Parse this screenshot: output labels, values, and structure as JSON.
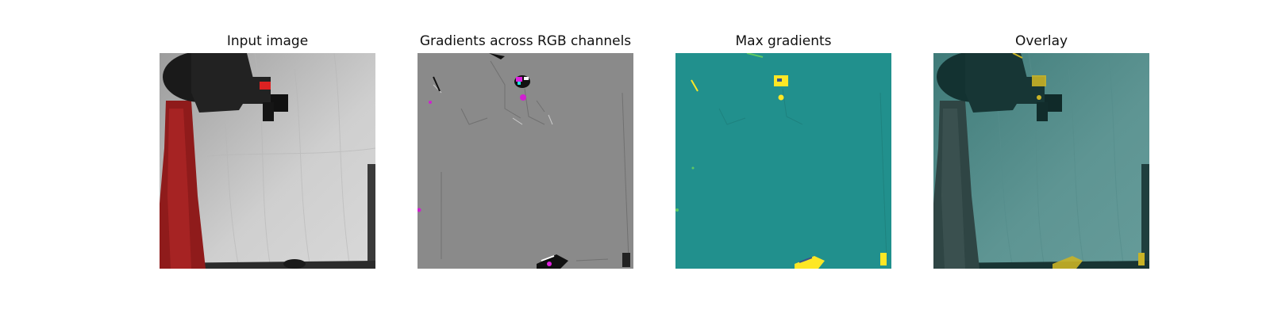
{
  "figure": {
    "panels": [
      {
        "title": "Input image"
      },
      {
        "title": "Gradients across RGB channels"
      },
      {
        "title": "Max gradients"
      },
      {
        "title": "Overlay"
      }
    ]
  },
  "colors": {
    "gradient_gray": "#8a8a8a",
    "viridis_teal": "#21908d",
    "viridis_yellow": "#fde725",
    "robot_red": "#9a1f1f",
    "magenta": "#e020e0"
  }
}
